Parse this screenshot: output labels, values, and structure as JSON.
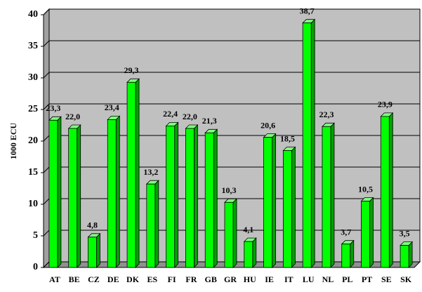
{
  "chart_data": {
    "type": "bar",
    "y_label": "1000 ECU",
    "categories": [
      "AT",
      "BE",
      "CZ",
      "DE",
      "DK",
      "ES",
      "FI",
      "FR",
      "GB",
      "GR",
      "HU",
      "IE",
      "IT",
      "LU",
      "NL",
      "PL",
      "PT",
      "SE",
      "SK"
    ],
    "values": [
      23.3,
      22.0,
      4.8,
      23.4,
      29.3,
      13.2,
      22.4,
      22.0,
      21.3,
      10.3,
      4.1,
      20.6,
      18.5,
      38.7,
      22.3,
      3.7,
      10.5,
      23.9,
      3.5
    ],
    "value_labels": [
      "23,3",
      "22,0",
      "4,8",
      "23,4",
      "29,3",
      "13,2",
      "22,4",
      "22,0",
      "21,3",
      "10,3",
      "4,1",
      "20,6",
      "18,5",
      "38,7",
      "22,3",
      "3,7",
      "10,5",
      "23,9",
      "3,5"
    ],
    "color": "#00ff00",
    "ylim": [
      0,
      40
    ],
    "yticks": [
      0,
      5,
      10,
      15,
      20,
      25,
      30,
      35,
      40
    ],
    "grid": true
  }
}
